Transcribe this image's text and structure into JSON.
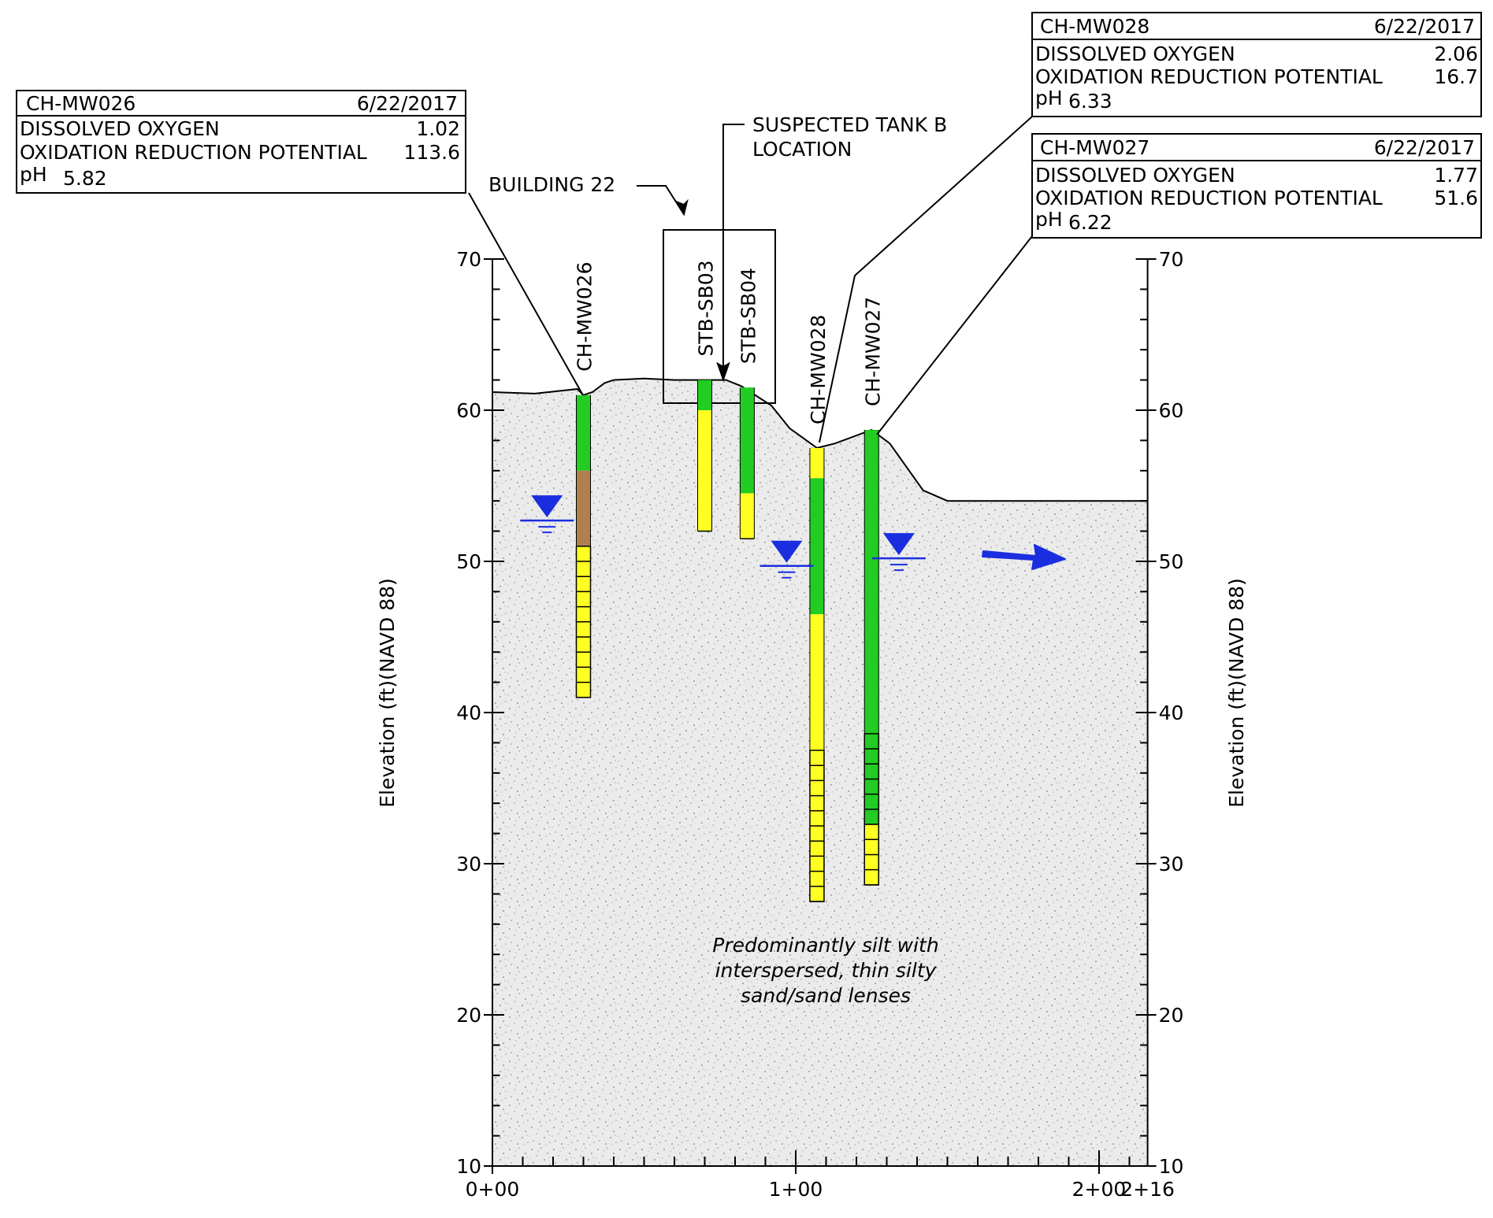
{
  "y_axis": {
    "title_left": "Elevation (ft)(NAVD 88)",
    "title_right": "Elevation (ft)(NAVD 88)",
    "min": 10,
    "max": 70,
    "ticks": [
      "10",
      "20",
      "30",
      "40",
      "50",
      "60",
      "70"
    ]
  },
  "x_axis": {
    "ticks": [
      {
        "value": 0,
        "label": "0+00"
      },
      {
        "value": 100,
        "label": "1+00"
      },
      {
        "value": 200,
        "label": "2+00"
      },
      {
        "value": 216,
        "label": "2+16"
      }
    ]
  },
  "callouts": {
    "mw026": {
      "well": "CH-MW026",
      "date": "6/22/2017",
      "do_label": "DISSOLVED OXYGEN",
      "do_value": "1.02",
      "orp_label": "OXIDATION REDUCTION POTENTIAL",
      "orp_value": "113.6",
      "ph_label": "pH",
      "ph_value": "5.82"
    },
    "mw028": {
      "well": "CH-MW028",
      "date": "6/22/2017",
      "do_label": "DISSOLVED OXYGEN",
      "do_value": "2.06",
      "orp_label": "OXIDATION REDUCTION POTENTIAL",
      "orp_value": "16.7",
      "ph_label": "pH",
      "ph_value": "6.33"
    },
    "mw027": {
      "well": "CH-MW027",
      "date": "6/22/2017",
      "do_label": "DISSOLVED OXYGEN",
      "do_value": "1.77",
      "orp_label": "OXIDATION REDUCTION POTENTIAL",
      "orp_value": "51.6",
      "ph_label": "pH",
      "ph_value": "6.22"
    }
  },
  "labels": {
    "building": "BUILDING 22",
    "tank_line1": "SUSPECTED TANK B",
    "tank_line2": "LOCATION",
    "soil_line1": "Predominantly silt with",
    "soil_line2": "interspersed, thin silty",
    "soil_line3": "sand/sand lenses"
  },
  "borings": [
    {
      "id": "ch-mw026",
      "name": "CH-MW026",
      "station": 30,
      "top": 61.0,
      "segments": [
        {
          "from": 61.0,
          "to": 56.0,
          "color": "green"
        },
        {
          "from": 56.0,
          "to": 51.0,
          "color": "brown"
        },
        {
          "from": 51.0,
          "to": 41.0,
          "color": "yellow",
          "screen": true
        }
      ]
    },
    {
      "id": "stb-sb03",
      "name": "STB-SB03",
      "station": 70,
      "top": 62.0,
      "segments": [
        {
          "from": 62.0,
          "to": 60.0,
          "color": "green"
        },
        {
          "from": 60.0,
          "to": 52.0,
          "color": "yellow"
        }
      ]
    },
    {
      "id": "stb-sb04",
      "name": "STB-SB04",
      "station": 84,
      "top": 61.5,
      "segments": [
        {
          "from": 61.5,
          "to": 54.5,
          "color": "green"
        },
        {
          "from": 54.5,
          "to": 51.5,
          "color": "yellow"
        }
      ]
    },
    {
      "id": "ch-mw028",
      "name": "CH-MW028",
      "station": 107,
      "top": 57.5,
      "segments": [
        {
          "from": 57.5,
          "to": 55.5,
          "color": "yellow"
        },
        {
          "from": 55.5,
          "to": 46.5,
          "color": "green"
        },
        {
          "from": 46.5,
          "to": 37.5,
          "color": "yellow"
        },
        {
          "from": 37.5,
          "to": 27.5,
          "color": "yellow",
          "screen": true
        }
      ]
    },
    {
      "id": "ch-mw027",
      "name": "CH-MW027",
      "station": 125,
      "top": 58.7,
      "segments": [
        {
          "from": 58.7,
          "to": 38.6,
          "color": "green"
        },
        {
          "from": 38.6,
          "to": 32.6,
          "color": "green",
          "screen": true
        },
        {
          "from": 32.6,
          "to": 28.6,
          "color": "yellow",
          "screen": true
        }
      ]
    }
  ],
  "water_levels": [
    {
      "station": 18,
      "elevation": 52.7
    },
    {
      "station": 97,
      "elevation": 49.7
    },
    {
      "station": 134,
      "elevation": 50.2
    }
  ],
  "ground_surface": [
    [
      0,
      61.2
    ],
    [
      14,
      61.1
    ],
    [
      28,
      61.4
    ],
    [
      30,
      61.0
    ],
    [
      33,
      61.2
    ],
    [
      37,
      61.8
    ],
    [
      40,
      62.0
    ],
    [
      50,
      62.1
    ],
    [
      60,
      62.0
    ],
    [
      77,
      62.0
    ],
    [
      82,
      61.6
    ],
    [
      92,
      60.3
    ],
    [
      98,
      58.8
    ],
    [
      107,
      57.5
    ],
    [
      113,
      57.8
    ],
    [
      125,
      58.7
    ],
    [
      131,
      57.8
    ],
    [
      142,
      54.7
    ],
    [
      150,
      54.0
    ],
    [
      216,
      54.0
    ]
  ],
  "colors": {
    "green": "#22cc22",
    "yellow": "#ffff22",
    "brown": "#b08050",
    "water": "#1a2ee0",
    "soil": "#e8e8e8"
  }
}
